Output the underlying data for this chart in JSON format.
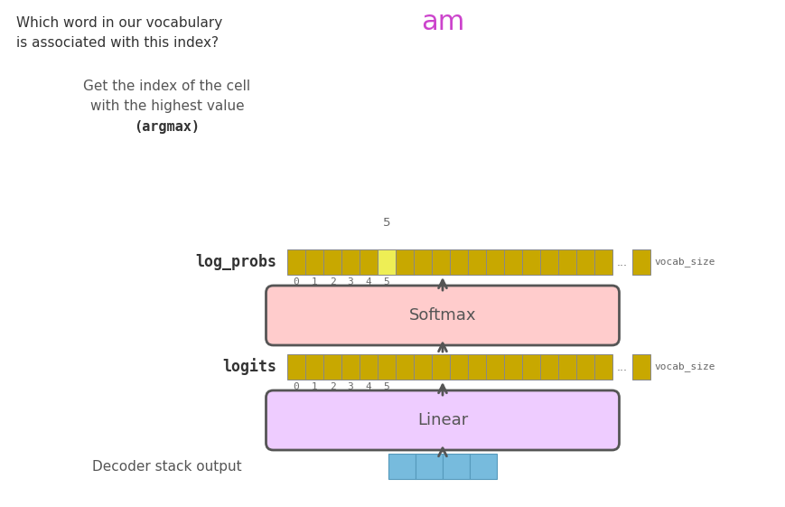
{
  "bg_color": "#ffffff",
  "title_text1": "Which word in our vocabulary",
  "title_text2": "is associated with this index?",
  "output_word": "am",
  "output_word_color": "#cc44cc",
  "argmax_label1": "Get the index of the cell",
  "argmax_label2": "with the highest value",
  "argmax_label3": "(argmax)",
  "argmax_value": "5",
  "log_probs_label": "log_probs",
  "logits_label": "logits",
  "decoder_label": "Decoder stack output",
  "softmax_label": "Softmax",
  "linear_label": "Linear",
  "bar_color_dark": "#c8a800",
  "bar_highlight_color": "#eeee55",
  "cell_border_color": "#888888",
  "softmax_fill": "#ffcccc",
  "linear_fill": "#eeccff",
  "box_edge_color": "#555555",
  "decoder_cell_color": "#77bbdd",
  "arrow_color": "#555555",
  "num_cells_main": 18,
  "highlight_index": 5,
  "tick_labels": [
    "0",
    "1",
    "2",
    "3",
    "4",
    "5"
  ],
  "vocab_size_label": "vocab_size",
  "ellipsis": "..."
}
